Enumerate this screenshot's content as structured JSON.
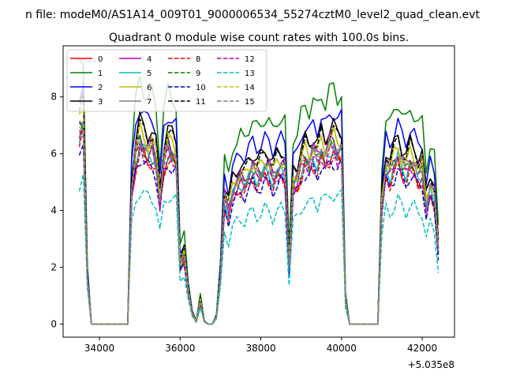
{
  "suptitle": "n file: modeM0/AS1A14_009T01_9000006534_55274cztM0_level2_quad_clean.evt",
  "chart_data": {
    "type": "line",
    "title": "Quadrant 0 module wise count rates with 100.0s bins.",
    "xlabel": "",
    "ylabel": "",
    "offset_label": "+5.035e8",
    "x_offset": 503500000,
    "xlim": [
      33100,
      42800
    ],
    "ylim": [
      -0.46,
      9.8
    ],
    "x_ticks": [
      34000,
      36000,
      38000,
      40000,
      42000
    ],
    "y_ticks": [
      0,
      2,
      4,
      6,
      8
    ],
    "x_tick_labels": [
      "34000",
      "36000",
      "38000",
      "40000",
      "42000"
    ],
    "y_tick_labels": [
      "0",
      "2",
      "4",
      "6",
      "8"
    ],
    "grid": false,
    "legend_position": "top-left",
    "legend_columns": 4,
    "x": [
      33500,
      33600,
      33700,
      33800,
      33900,
      34000,
      34100,
      34200,
      34300,
      34400,
      34500,
      34600,
      34700,
      34800,
      34900,
      35000,
      35100,
      35200,
      35300,
      35400,
      35500,
      35600,
      35700,
      35800,
      35900,
      36000,
      36100,
      36200,
      36300,
      36400,
      36500,
      36600,
      36700,
      36800,
      36900,
      37000,
      37100,
      37200,
      37300,
      37400,
      37500,
      37600,
      37700,
      37800,
      37900,
      38000,
      38100,
      38200,
      38300,
      38400,
      38500,
      38600,
      38700,
      38800,
      38900,
      39000,
      39100,
      39200,
      39300,
      39400,
      39500,
      39600,
      39700,
      39800,
      39900,
      40000,
      40100,
      40200,
      40300,
      40400,
      40500,
      40600,
      40700,
      40800,
      40900,
      41000,
      41100,
      41200,
      41300,
      41400,
      41500,
      41600,
      41700,
      41800,
      41900,
      42000,
      42100,
      42200,
      42300,
      42400
    ],
    "base_profile": [
      7.6,
      7.9,
      1.8,
      0,
      0,
      0,
      0,
      0,
      0,
      0,
      0,
      0,
      0,
      5.2,
      6.6,
      7.2,
      6.9,
      6.7,
      6.8,
      6.4,
      4.8,
      6.4,
      6.9,
      6.7,
      6.5,
      2.3,
      2.7,
      1.3,
      0.4,
      0.1,
      0.9,
      0.1,
      0,
      0,
      0.3,
      1.9,
      4.9,
      4.4,
      5.2,
      5.4,
      5.6,
      5.5,
      5.8,
      6.0,
      5.8,
      5.9,
      6.1,
      6.0,
      5.7,
      6.0,
      6.1,
      6.0,
      2.2,
      5.5,
      5.6,
      6.2,
      6.5,
      6.3,
      6.6,
      6.4,
      6.8,
      6.5,
      6.9,
      7.0,
      6.7,
      6.8,
      0.9,
      0,
      0,
      0,
      0,
      0,
      0,
      0,
      0,
      4.7,
      6.1,
      5.9,
      6.3,
      6.6,
      6.2,
      6.0,
      6.4,
      6.2,
      5.9,
      6.0,
      4.6,
      5.3,
      5.0,
      2.9
    ],
    "series": [
      {
        "name": "0",
        "color": "#ff0000",
        "dash": "solid",
        "scale": 0.86
      },
      {
        "name": "1",
        "color": "#008000",
        "dash": "solid",
        "scale": 1.19
      },
      {
        "name": "2",
        "color": "#0000ff",
        "dash": "solid",
        "scale": 1.07
      },
      {
        "name": "3",
        "color": "#000000",
        "dash": "solid",
        "scale": 1.0
      },
      {
        "name": "4",
        "color": "#bf00bf",
        "dash": "solid",
        "scale": 0.93
      },
      {
        "name": "5",
        "color": "#00bfbf",
        "dash": "solid",
        "scale": 0.88
      },
      {
        "name": "6",
        "color": "#bfbf00",
        "dash": "solid",
        "scale": 0.95
      },
      {
        "name": "7",
        "color": "#808080",
        "dash": "solid",
        "scale": 0.9
      },
      {
        "name": "8",
        "color": "#ff0000",
        "dash": "dashed",
        "scale": 0.84
      },
      {
        "name": "9",
        "color": "#008000",
        "dash": "dashed",
        "scale": 0.89
      },
      {
        "name": "10",
        "color": "#0000cc",
        "dash": "dashed",
        "scale": 0.82
      },
      {
        "name": "11",
        "color": "#000000",
        "dash": "dashed",
        "scale": 0.98
      },
      {
        "name": "12",
        "color": "#bf00bf",
        "dash": "dashed",
        "scale": 0.87
      },
      {
        "name": "13",
        "color": "#00bfbf",
        "dash": "dashed",
        "scale": 0.66
      },
      {
        "name": "14",
        "color": "#bfbf00",
        "dash": "dashed",
        "scale": 0.94
      },
      {
        "name": "15",
        "color": "#808080",
        "dash": "dashed",
        "scale": 0.91
      }
    ]
  }
}
